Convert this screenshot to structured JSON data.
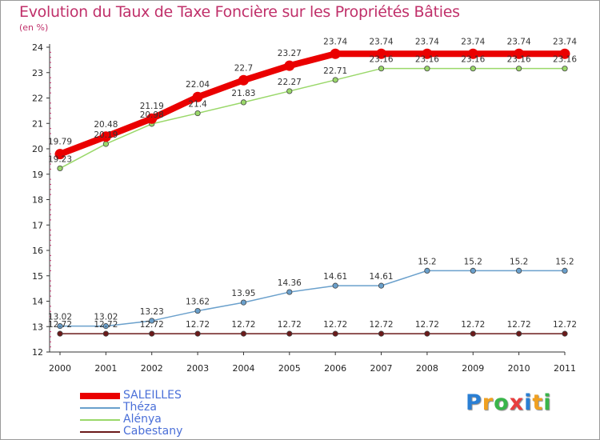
{
  "title": "Evolution du Taux de Taxe Foncière sur les Propriétés Bâties",
  "subtitle": "(en %)",
  "logo": {
    "text": "Proxiti",
    "colors": [
      "#2a7fd4",
      "#f0a020",
      "#39b54a",
      "#e83e3e",
      "#2a7fd4",
      "#f0a020",
      "#39b54a"
    ]
  },
  "chart_data": {
    "type": "line",
    "title": "Evolution du Taux de Taxe Foncière sur les Propriétés Bâties",
    "ylabel": "(en %)",
    "xlabel": "",
    "ylim": [
      12,
      24
    ],
    "yticks": [
      "12",
      "13",
      "14",
      "15",
      "16",
      "17",
      "18",
      "19",
      "20",
      "21",
      "22",
      "23",
      "24"
    ],
    "categories": [
      "2000",
      "2001",
      "2002",
      "2003",
      "2004",
      "2005",
      "2006",
      "2007",
      "2008",
      "2009",
      "2010",
      "2011"
    ],
    "series": [
      {
        "name": "Cabestany",
        "color": "#6b1a1a",
        "width": 1.5,
        "labelPos": "above",
        "values": [
          12.72,
          12.72,
          12.72,
          12.72,
          12.72,
          12.72,
          12.72,
          12.72,
          12.72,
          12.72,
          12.72,
          12.72
        ],
        "labels": [
          "12.72",
          "12.72",
          "12.72",
          "12.72",
          "12.72",
          "12.72",
          "12.72",
          "12.72",
          "12.72",
          "12.72",
          "12.72",
          "12.72"
        ]
      },
      {
        "name": "Théza",
        "color": "#6aa0cc",
        "width": 1.5,
        "labelPos": "above",
        "values": [
          13.02,
          13.02,
          13.23,
          13.62,
          13.95,
          14.36,
          14.61,
          14.61,
          15.2,
          15.2,
          15.2,
          15.2
        ],
        "labels": [
          "13.02",
          "13.02",
          "13.23",
          "13.62",
          "13.95",
          "14.36",
          "14.61",
          "14.61",
          "15.2",
          "15.2",
          "15.2",
          "15.2"
        ]
      },
      {
        "name": "Alénya",
        "color": "#9ad86a",
        "width": 1.5,
        "labelPos": "above",
        "values": [
          19.23,
          20.19,
          20.98,
          21.4,
          21.83,
          22.27,
          22.71,
          23.16,
          23.16,
          23.16,
          23.16,
          23.16
        ],
        "labels": [
          "19.23",
          "20.19",
          "20.98",
          "21.4",
          "21.83",
          "22.27",
          "22.71",
          "23.16",
          "23.16",
          "23.16",
          "23.16",
          "23.16"
        ]
      },
      {
        "name": "SALEILLES",
        "color": "#ea0000",
        "width": 8,
        "labelPos": "above",
        "values": [
          19.79,
          20.48,
          21.19,
          22.04,
          22.7,
          23.27,
          23.74,
          23.74,
          23.74,
          23.74,
          23.74,
          23.74
        ],
        "labels": [
          "19.79",
          "20.48",
          "21.19",
          "22.04",
          "22.7",
          "23.27",
          "23.74",
          "23.74",
          "23.74",
          "23.74",
          "23.74",
          "23.74"
        ]
      }
    ],
    "legend": [
      {
        "name": "SALEILLES",
        "color": "#ea0000",
        "width": 8
      },
      {
        "name": "Théza",
        "color": "#6aa0cc",
        "width": 2
      },
      {
        "name": "Alénya",
        "color": "#9ad86a",
        "width": 2
      },
      {
        "name": "Cabestany",
        "color": "#6b1a1a",
        "width": 2
      }
    ],
    "legend_position": "bottom-left"
  }
}
